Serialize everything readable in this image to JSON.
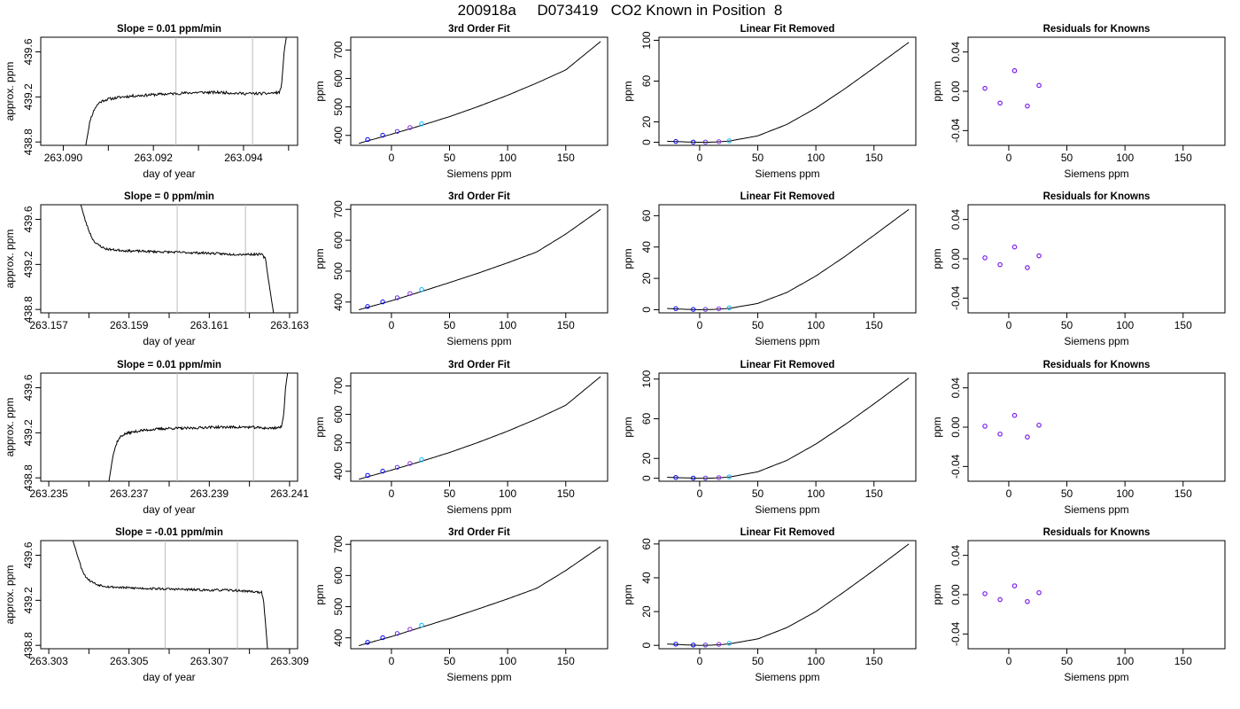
{
  "figure": {
    "title": "200918a     D073419   CO2 Known in Position  8"
  },
  "colors": {
    "axis": "#000000",
    "line": "#000000",
    "window_lines": "#bdbdbd",
    "points": [
      "#0000ff",
      "#0000ff",
      "#5b2fe0",
      "#8a2be2",
      "#00b4ff"
    ],
    "residual_points": "#7b1fe8"
  },
  "chart_data": [
    {
      "type": "line",
      "panel": "timeseries",
      "row": 1,
      "title": "Slope =  0.01  ppm/min",
      "xlabel": "day of year",
      "ylabel": "approx. ppm",
      "xlim": [
        263.0895,
        263.0952
      ],
      "ylim": [
        438.77,
        439.73
      ],
      "xticks": [
        263.09,
        263.091,
        263.092,
        263.093,
        263.094,
        263.095
      ],
      "xticklabels": [
        "263.090",
        "",
        "263.092",
        "",
        "263.094",
        ""
      ],
      "yticks": [
        438.8,
        439.2,
        439.6
      ],
      "yticklabels": [
        "438.8",
        "439.2",
        "439.6"
      ],
      "window": [
        263.0925,
        263.0942
      ],
      "x": [
        263.0905,
        263.0906,
        263.0907,
        263.0908,
        263.0909,
        263.091,
        263.0913,
        263.0916,
        263.092,
        263.0925,
        263.093,
        263.0935,
        263.094,
        263.0945,
        263.0948,
        263.09485,
        263.0949,
        263.09495
      ],
      "y": [
        438.77,
        439.0,
        439.1,
        439.15,
        439.17,
        439.18,
        439.2,
        439.21,
        439.22,
        439.23,
        439.24,
        439.24,
        439.23,
        439.23,
        439.24,
        439.32,
        439.6,
        439.73
      ],
      "noise": 0.012,
      "seed": 11
    },
    {
      "type": "line",
      "panel": "fit",
      "row": 1,
      "title": "3rd Order Fit",
      "xlabel": "Siemens ppm",
      "ylabel": "ppm",
      "xlim": [
        -35,
        186
      ],
      "ylim": [
        365,
        745
      ],
      "xticks": [
        0,
        50,
        100,
        150
      ],
      "yticks": [
        400,
        500,
        600,
        700
      ],
      "x_points": [
        -20.5,
        -7.5,
        5.0,
        16.0,
        26.0
      ],
      "y_points": [
        385.5,
        400.5,
        414.0,
        427.5,
        440.5
      ],
      "curve_x": [
        -28,
        0,
        25,
        50,
        75,
        100,
        125,
        150,
        180
      ],
      "curve_y": [
        372,
        404,
        434,
        466,
        502,
        541,
        584,
        630,
        730
      ]
    },
    {
      "type": "line",
      "panel": "linear_removed",
      "row": 1,
      "title": "Linear Fit Removed",
      "xlabel": "Siemens ppm",
      "ylabel": "ppm",
      "xlim": [
        -35,
        186
      ],
      "ylim": [
        -3,
        103
      ],
      "xticks": [
        0,
        50,
        100,
        150
      ],
      "yticks": [
        0,
        20,
        60,
        100
      ],
      "x_points": [
        -20.5,
        -5.5,
        5.0,
        16.5,
        25.5
      ],
      "y_points": [
        0.8,
        0.2,
        0.2,
        0.6,
        1.4
      ],
      "curve_x": [
        -28,
        -10,
        0,
        10,
        25,
        50,
        75,
        100,
        125,
        150,
        180
      ],
      "curve_y": [
        1.0,
        0.3,
        0.0,
        0.1,
        1.1,
        6.3,
        17.5,
        33.5,
        52.5,
        73.0,
        98.0
      ]
    },
    {
      "type": "scatter",
      "panel": "residuals",
      "row": 1,
      "title": "Residuals for Knowns",
      "xlabel": "Siemens ppm",
      "ylabel": "ppm",
      "xlim": [
        -35,
        186
      ],
      "ylim": [
        -0.055,
        0.055
      ],
      "xticks": [
        0,
        50,
        100,
        150
      ],
      "yticks": [
        -0.04,
        0.0,
        0.04
      ],
      "yticklabels": [
        "-0.04",
        "0.00",
        "0.04"
      ],
      "x": [
        -20.5,
        -7.5,
        5.0,
        16.0,
        26.0
      ],
      "y": [
        0.003,
        -0.012,
        0.021,
        -0.015,
        0.006
      ]
    },
    {
      "type": "line",
      "panel": "timeseries",
      "row": 2,
      "title": "Slope =  0  ppm/min",
      "xlabel": "day of year",
      "ylabel": "approx. ppm",
      "xlim": [
        263.1568,
        263.1632
      ],
      "ylim": [
        438.77,
        439.73
      ],
      "xticks": [
        263.157,
        263.158,
        263.159,
        263.16,
        263.161,
        263.162,
        263.163
      ],
      "xticklabels": [
        "263.157",
        "",
        "263.159",
        "",
        "263.161",
        "",
        "263.163"
      ],
      "yticks": [
        438.8,
        439.2,
        439.6
      ],
      "yticklabels": [
        "438.8",
        "439.2",
        "439.6"
      ],
      "window": [
        263.1602,
        263.1619
      ],
      "x": [
        263.1578,
        263.1579,
        263.158,
        263.1581,
        263.1582,
        263.1584,
        263.1586,
        263.159,
        263.16,
        263.161,
        263.1615,
        263.162,
        263.1623,
        263.1624,
        263.1625,
        263.1626
      ],
      "y": [
        439.73,
        439.6,
        439.5,
        439.42,
        439.38,
        439.34,
        439.33,
        439.32,
        439.31,
        439.3,
        439.29,
        439.29,
        439.29,
        439.25,
        439.0,
        438.77
      ],
      "noise": 0.01,
      "seed": 23
    },
    {
      "type": "line",
      "panel": "fit",
      "row": 2,
      "title": "3rd Order Fit",
      "xlabel": "Siemens ppm",
      "ylabel": "ppm",
      "xlim": [
        -35,
        186
      ],
      "ylim": [
        365,
        715
      ],
      "xticks": [
        0,
        50,
        100,
        150
      ],
      "yticks": [
        400,
        500,
        600,
        700
      ],
      "x_points": [
        -20.5,
        -7.5,
        5.0,
        16.0,
        26.0
      ],
      "y_points": [
        385.5,
        400.5,
        414.0,
        427.5,
        440.5
      ],
      "curve_x": [
        -28,
        0,
        25,
        50,
        75,
        100,
        125,
        150,
        180
      ],
      "curve_y": [
        375,
        404,
        433,
        463,
        494,
        527,
        562,
        620,
        700
      ]
    },
    {
      "type": "line",
      "panel": "linear_removed",
      "row": 2,
      "title": "Linear Fit Removed",
      "xlabel": "Siemens ppm",
      "ylabel": "ppm",
      "xlim": [
        -35,
        186
      ],
      "ylim": [
        -2,
        67
      ],
      "xticks": [
        0,
        50,
        100,
        150
      ],
      "yticks": [
        0,
        20,
        40,
        60
      ],
      "x_points": [
        -20.5,
        -5.5,
        5.0,
        16.5,
        25.5
      ],
      "y_points": [
        0.7,
        0.2,
        0.2,
        0.6,
        1.2
      ],
      "curve_x": [
        -28,
        -10,
        0,
        10,
        25,
        50,
        75,
        100,
        125,
        150,
        180
      ],
      "curve_y": [
        0.8,
        0.2,
        0.0,
        0.1,
        0.8,
        4.0,
        11.0,
        21.5,
        34.0,
        47.5,
        64.0
      ]
    },
    {
      "type": "scatter",
      "panel": "residuals",
      "row": 2,
      "title": "Residuals for Knowns",
      "xlabel": "Siemens ppm",
      "ylabel": "ppm",
      "xlim": [
        -35,
        186
      ],
      "ylim": [
        -0.055,
        0.055
      ],
      "xticks": [
        0,
        50,
        100,
        150
      ],
      "yticks": [
        -0.04,
        0.0,
        0.04
      ],
      "yticklabels": [
        "-0.04",
        "0.00",
        "0.04"
      ],
      "x": [
        -20.5,
        -7.5,
        5.0,
        16.0,
        26.0
      ],
      "y": [
        0.001,
        -0.006,
        0.012,
        -0.009,
        0.003
      ]
    },
    {
      "type": "line",
      "panel": "timeseries",
      "row": 3,
      "title": "Slope =  0.01  ppm/min",
      "xlabel": "day of year",
      "ylabel": "approx. ppm",
      "xlim": [
        263.2348,
        263.2412
      ],
      "ylim": [
        438.77,
        439.73
      ],
      "xticks": [
        263.235,
        263.236,
        263.237,
        263.238,
        263.239,
        263.24,
        263.241
      ],
      "xticklabels": [
        "263.235",
        "",
        "263.237",
        "",
        "263.239",
        "",
        "263.241"
      ],
      "yticks": [
        438.8,
        439.2,
        439.6
      ],
      "yticklabels": [
        "438.8",
        "439.2",
        "439.6"
      ],
      "window": [
        263.2382,
        263.2401
      ],
      "x": [
        263.2365,
        263.2366,
        263.2367,
        263.2368,
        263.2369,
        263.237,
        263.2373,
        263.2376,
        263.238,
        263.2385,
        263.239,
        263.2395,
        263.24,
        263.2405,
        263.2408,
        263.24085,
        263.2409,
        263.24095
      ],
      "y": [
        438.77,
        439.0,
        439.12,
        439.17,
        439.19,
        439.2,
        439.22,
        439.23,
        439.24,
        439.24,
        439.25,
        439.25,
        439.25,
        439.24,
        439.25,
        439.35,
        439.6,
        439.73
      ],
      "noise": 0.011,
      "seed": 37
    },
    {
      "type": "line",
      "panel": "fit",
      "row": 3,
      "title": "3rd Order Fit",
      "xlabel": "Siemens ppm",
      "ylabel": "ppm",
      "xlim": [
        -35,
        186
      ],
      "ylim": [
        365,
        745
      ],
      "xticks": [
        0,
        50,
        100,
        150
      ],
      "yticks": [
        400,
        500,
        600,
        700
      ],
      "x_points": [
        -20.5,
        -7.5,
        5.0,
        16.0,
        26.0
      ],
      "y_points": [
        385.5,
        400.5,
        414.0,
        427.5,
        440.5
      ],
      "curve_x": [
        -28,
        0,
        25,
        50,
        75,
        100,
        125,
        150,
        180
      ],
      "curve_y": [
        372,
        404,
        434,
        466,
        502,
        541,
        584,
        632,
        733
      ]
    },
    {
      "type": "line",
      "panel": "linear_removed",
      "row": 3,
      "title": "Linear Fit Removed",
      "xlabel": "Siemens ppm",
      "ylabel": "ppm",
      "xlim": [
        -35,
        186
      ],
      "ylim": [
        -3,
        106
      ],
      "xticks": [
        0,
        50,
        100,
        150
      ],
      "yticks": [
        0,
        20,
        60,
        100
      ],
      "x_points": [
        -20.5,
        -5.5,
        5.0,
        16.5,
        25.5
      ],
      "y_points": [
        0.8,
        0.2,
        0.2,
        0.6,
        1.4
      ],
      "curve_x": [
        -28,
        -10,
        0,
        10,
        25,
        50,
        75,
        100,
        125,
        150,
        180
      ],
      "curve_y": [
        1.0,
        0.3,
        0.0,
        0.1,
        1.1,
        6.5,
        18.0,
        34.5,
        54.0,
        75.0,
        101.0
      ]
    },
    {
      "type": "scatter",
      "panel": "residuals",
      "row": 3,
      "title": "Residuals for Knowns",
      "xlabel": "Siemens ppm",
      "ylabel": "ppm",
      "xlim": [
        -35,
        186
      ],
      "ylim": [
        -0.055,
        0.055
      ],
      "xticks": [
        0,
        50,
        100,
        150
      ],
      "yticks": [
        -0.04,
        0.0,
        0.04
      ],
      "yticklabels": [
        "-0.04",
        "0.00",
        "0.04"
      ],
      "x": [
        -20.5,
        -7.5,
        5.0,
        16.0,
        26.0
      ],
      "y": [
        0.001,
        -0.007,
        0.012,
        -0.01,
        0.002
      ]
    },
    {
      "type": "line",
      "panel": "timeseries",
      "row": 4,
      "title": "Slope =  -0.01  ppm/min",
      "xlabel": "day of year",
      "ylabel": "approx. ppm",
      "xlim": [
        263.3028,
        263.3092
      ],
      "ylim": [
        438.77,
        439.73
      ],
      "xticks": [
        263.303,
        263.304,
        263.305,
        263.306,
        263.307,
        263.308,
        263.309
      ],
      "xticklabels": [
        "263.303",
        "",
        "263.305",
        "",
        "263.307",
        "",
        "263.309"
      ],
      "yticks": [
        438.8,
        439.2,
        439.6
      ],
      "yticklabels": [
        "438.8",
        "439.2",
        "439.6"
      ],
      "window": [
        263.3059,
        263.3077
      ],
      "x": [
        263.3036,
        263.3037,
        263.3038,
        263.3039,
        263.304,
        263.3042,
        263.3045,
        263.305,
        263.306,
        263.307,
        263.3075,
        263.308,
        263.3083,
        263.30835,
        263.3084,
        263.30845
      ],
      "y": [
        439.73,
        439.62,
        439.5,
        439.42,
        439.38,
        439.34,
        439.32,
        439.31,
        439.3,
        439.29,
        439.29,
        439.28,
        439.27,
        439.2,
        439.0,
        438.77
      ],
      "noise": 0.01,
      "seed": 53
    },
    {
      "type": "line",
      "panel": "fit",
      "row": 4,
      "title": "3rd Order Fit",
      "xlabel": "Siemens ppm",
      "ylabel": "ppm",
      "xlim": [
        -35,
        186
      ],
      "ylim": [
        365,
        712
      ],
      "xticks": [
        0,
        50,
        100,
        150
      ],
      "yticks": [
        400,
        500,
        600,
        700
      ],
      "x_points": [
        -20.5,
        -7.5,
        5.0,
        16.0,
        26.0
      ],
      "y_points": [
        385.5,
        400.5,
        414.0,
        427.5,
        440.5
      ],
      "curve_x": [
        -28,
        0,
        25,
        50,
        75,
        100,
        125,
        150,
        180
      ],
      "curve_y": [
        375,
        404,
        433,
        462,
        493,
        525,
        559,
        616,
        693
      ]
    },
    {
      "type": "line",
      "panel": "linear_removed",
      "row": 4,
      "title": "Linear Fit Removed",
      "xlabel": "Siemens ppm",
      "ylabel": "ppm",
      "xlim": [
        -35,
        186
      ],
      "ylim": [
        -2,
        62
      ],
      "xticks": [
        0,
        50,
        100,
        150
      ],
      "yticks": [
        0,
        20,
        40,
        60
      ],
      "x_points": [
        -20.5,
        -5.5,
        5.0,
        16.5,
        25.5
      ],
      "y_points": [
        0.7,
        0.2,
        0.2,
        0.6,
        1.2
      ],
      "curve_x": [
        -28,
        -10,
        0,
        10,
        25,
        50,
        75,
        100,
        125,
        150,
        180
      ],
      "curve_y": [
        0.8,
        0.2,
        0.0,
        0.1,
        0.8,
        3.8,
        10.5,
        20.0,
        32.0,
        44.5,
        60.0
      ]
    },
    {
      "type": "scatter",
      "panel": "residuals",
      "row": 4,
      "title": "Residuals for Knowns",
      "xlabel": "Siemens ppm",
      "ylabel": "ppm",
      "xlim": [
        -35,
        186
      ],
      "ylim": [
        -0.055,
        0.055
      ],
      "xticks": [
        0,
        50,
        100,
        150
      ],
      "yticks": [
        -0.04,
        0.0,
        0.04
      ],
      "yticklabels": [
        "-0.04",
        "0.00",
        "0.04"
      ],
      "x": [
        -20.5,
        -7.5,
        5.0,
        16.0,
        26.0
      ],
      "y": [
        0.001,
        -0.005,
        0.009,
        -0.007,
        0.002
      ]
    }
  ]
}
